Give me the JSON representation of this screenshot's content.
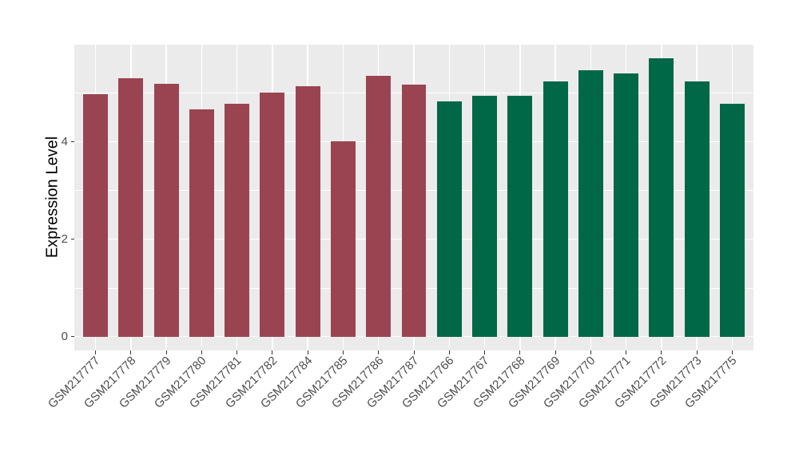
{
  "chart_data": {
    "type": "bar",
    "title": "",
    "xlabel": "",
    "ylabel": "Expression Level",
    "categories": [
      "GSM217777",
      "GSM217778",
      "GSM217779",
      "GSM217780",
      "GSM217781",
      "GSM217782",
      "GSM217784",
      "GSM217785",
      "GSM217786",
      "GSM217787",
      "GSM217766",
      "GSM217767",
      "GSM217768",
      "GSM217769",
      "GSM217770",
      "GSM217771",
      "GSM217772",
      "GSM217773",
      "GSM217775"
    ],
    "values": [
      4.97,
      5.3,
      5.19,
      4.66,
      4.77,
      5.0,
      5.14,
      4.0,
      5.34,
      5.16,
      4.83,
      4.94,
      4.94,
      5.24,
      5.46,
      5.4,
      5.7,
      5.23,
      4.78
    ],
    "bar_color_keys": [
      "maroon",
      "maroon",
      "maroon",
      "maroon",
      "maroon",
      "maroon",
      "maroon",
      "maroon",
      "maroon",
      "maroon",
      "green",
      "green",
      "green",
      "green",
      "green",
      "green",
      "green",
      "green",
      "green"
    ],
    "group_colors": {
      "maroon": "#9A4452",
      "green": "#006747"
    },
    "ylim": [
      -0.285,
      5.985
    ],
    "yticks": [
      0,
      2,
      4
    ],
    "yticks_minor": [
      1,
      3,
      5
    ],
    "grid": true,
    "legend": "none",
    "colors": {
      "figure_bg": "#FFFFFF",
      "panel_bg": "#EBEBEB",
      "grid": "#FFFFFF",
      "axis_text": "#4D4D4D",
      "axis_title": "#000000",
      "tick": "#333333"
    }
  }
}
